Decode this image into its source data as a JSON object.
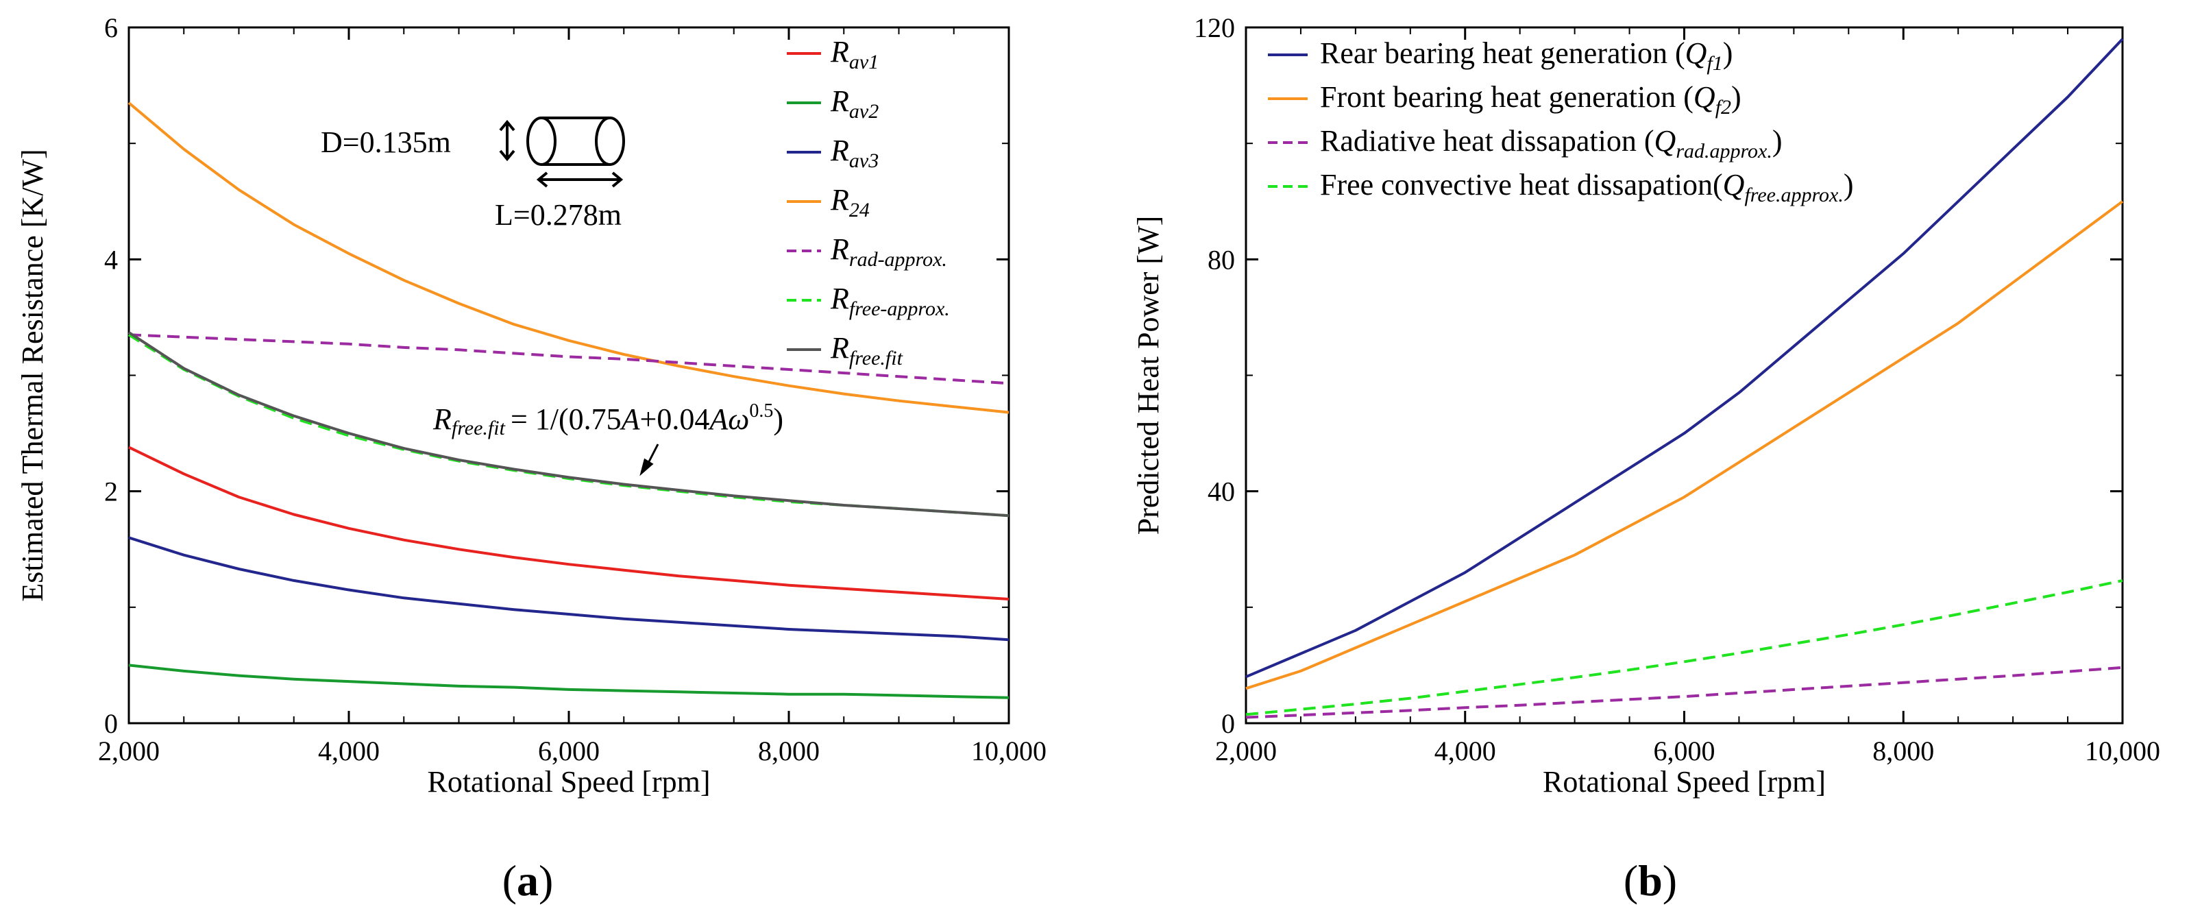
{
  "figure": {
    "label_a": "a",
    "label_b": "b",
    "paren_open": "(",
    "paren_close": ")"
  },
  "chart_data": [
    {
      "type": "line",
      "panel": "a",
      "xlabel": "Rotational Speed [rpm]",
      "ylabel": "Estimated Thermal Resistance [K/W]",
      "xlim": [
        2000,
        10000
      ],
      "ylim": [
        0,
        6
      ],
      "xticks": [
        2000,
        4000,
        6000,
        8000,
        10000
      ],
      "xtick_labels": [
        "2,000",
        "4,000",
        "6,000",
        "8,000",
        "10,000"
      ],
      "yticks": [
        0,
        2,
        4,
        6
      ],
      "ytick_labels": [
        "0",
        "2",
        "4",
        "6"
      ],
      "grid": false,
      "legend_position": "top-right",
      "x": [
        2000,
        2500,
        3000,
        3500,
        4000,
        4500,
        5000,
        5500,
        6000,
        6500,
        7000,
        7500,
        8000,
        8500,
        9000,
        9500,
        10000
      ],
      "series": [
        {
          "main": "R",
          "sub": "av1",
          "color": "#e8221e",
          "dash": "solid",
          "values": [
            2.38,
            2.15,
            1.95,
            1.8,
            1.68,
            1.58,
            1.5,
            1.43,
            1.37,
            1.32,
            1.27,
            1.23,
            1.19,
            1.16,
            1.13,
            1.1,
            1.07
          ]
        },
        {
          "main": "R",
          "sub": "av2",
          "color": "#179a2e",
          "dash": "solid",
          "values": [
            0.5,
            0.45,
            0.41,
            0.38,
            0.36,
            0.34,
            0.32,
            0.31,
            0.29,
            0.28,
            0.27,
            0.26,
            0.25,
            0.25,
            0.24,
            0.23,
            0.22
          ]
        },
        {
          "main": "R",
          "sub": "av3",
          "color": "#23268c",
          "dash": "solid",
          "values": [
            1.6,
            1.45,
            1.33,
            1.23,
            1.15,
            1.08,
            1.03,
            0.98,
            0.94,
            0.9,
            0.87,
            0.84,
            0.81,
            0.79,
            0.77,
            0.75,
            0.72
          ]
        },
        {
          "main": "R",
          "sub": "24",
          "color": "#f7931e",
          "dash": "solid",
          "values": [
            5.35,
            4.95,
            4.6,
            4.3,
            4.05,
            3.82,
            3.62,
            3.44,
            3.3,
            3.18,
            3.08,
            2.99,
            2.91,
            2.84,
            2.78,
            2.73,
            2.68
          ]
        },
        {
          "main": "R",
          "sub": "rad-approx.",
          "color": "#9c2aa0",
          "dash": "dashed",
          "values": [
            3.35,
            3.33,
            3.31,
            3.29,
            3.27,
            3.24,
            3.22,
            3.19,
            3.16,
            3.14,
            3.11,
            3.08,
            3.05,
            3.02,
            2.99,
            2.96,
            2.93
          ]
        },
        {
          "main": "R",
          "sub": "free-approx.",
          "color": "#1fe31f",
          "dash": "dashed",
          "values": [
            3.35,
            3.05,
            2.82,
            2.63,
            2.48,
            2.36,
            2.26,
            2.18,
            2.11,
            2.05,
            2.0,
            1.95,
            1.91,
            1.88,
            1.85,
            1.82,
            1.79
          ]
        },
        {
          "main": "R",
          "sub": "free.fit",
          "color": "#555555",
          "dash": "solid",
          "values": [
            3.37,
            3.06,
            2.83,
            2.65,
            2.5,
            2.37,
            2.27,
            2.19,
            2.12,
            2.06,
            2.01,
            1.96,
            1.92,
            1.88,
            1.85,
            1.82,
            1.79
          ]
        }
      ],
      "annotations": {
        "diameter": "D=0.135m",
        "length": "L=0.278m",
        "fit_lhs_main": "R",
        "fit_lhs_sub": "free.fit",
        "fit_rhs_a": "= 1/(0.75",
        "fit_rhs_A1": "A",
        "fit_rhs_b": "+0.04",
        "fit_rhs_A2": "A",
        "fit_rhs_omega": "ω",
        "fit_rhs_exp": "0.5",
        "fit_rhs_c": ")"
      }
    },
    {
      "type": "line",
      "panel": "b",
      "xlabel": "Rotational Speed [rpm]",
      "ylabel": "Predicted Heat Power [W]",
      "xlim": [
        2000,
        10000
      ],
      "ylim": [
        0,
        120
      ],
      "xticks": [
        2000,
        4000,
        6000,
        8000,
        10000
      ],
      "xtick_labels": [
        "2,000",
        "4,000",
        "6,000",
        "8,000",
        "10,000"
      ],
      "yticks": [
        0,
        40,
        80,
        120
      ],
      "ytick_labels": [
        "0",
        "40",
        "80",
        "120"
      ],
      "grid": false,
      "legend_position": "top-left",
      "x": [
        2000,
        2500,
        3000,
        3500,
        4000,
        4500,
        5000,
        5500,
        6000,
        6500,
        7000,
        7500,
        8000,
        8500,
        9000,
        9500,
        10000
      ],
      "series": [
        {
          "text": "Rear bearing heat generation (",
          "main": "Q",
          "sub": "f1",
          "close": ")",
          "color": "#23268c",
          "dash": "solid",
          "values": [
            8,
            12,
            16,
            21,
            26,
            32,
            38,
            44,
            50,
            57,
            65,
            73,
            81,
            90,
            99,
            108,
            118
          ]
        },
        {
          "text": "Front bearing heat generation (",
          "main": "Q",
          "sub": "f2",
          "close": ")",
          "color": "#f7931e",
          "dash": "solid",
          "values": [
            6,
            9,
            13,
            17,
            21,
            25,
            29,
            34,
            39,
            45,
            51,
            57,
            63,
            69,
            76,
            83,
            90
          ]
        },
        {
          "text": "Radiative heat dissapation (",
          "main": "Q",
          "sub": "rad.approx.",
          "close": ")",
          "color": "#9c2aa0",
          "dash": "dashed",
          "values": [
            1.0,
            1.4,
            1.8,
            2.2,
            2.7,
            3.1,
            3.6,
            4.1,
            4.6,
            5.2,
            5.8,
            6.4,
            7.0,
            7.6,
            8.2,
            8.9,
            9.6
          ]
        },
        {
          "text": "Free convective heat dissapation(",
          "main": "Q",
          "sub": "free.approx.",
          "close": ")",
          "color": "#1fe31f",
          "dash": "dashed",
          "values": [
            1.5,
            2.4,
            3.3,
            4.3,
            5.5,
            6.7,
            7.9,
            9.2,
            10.6,
            12.1,
            13.7,
            15.3,
            17.0,
            18.8,
            20.7,
            22.6,
            24.6
          ]
        }
      ]
    }
  ]
}
